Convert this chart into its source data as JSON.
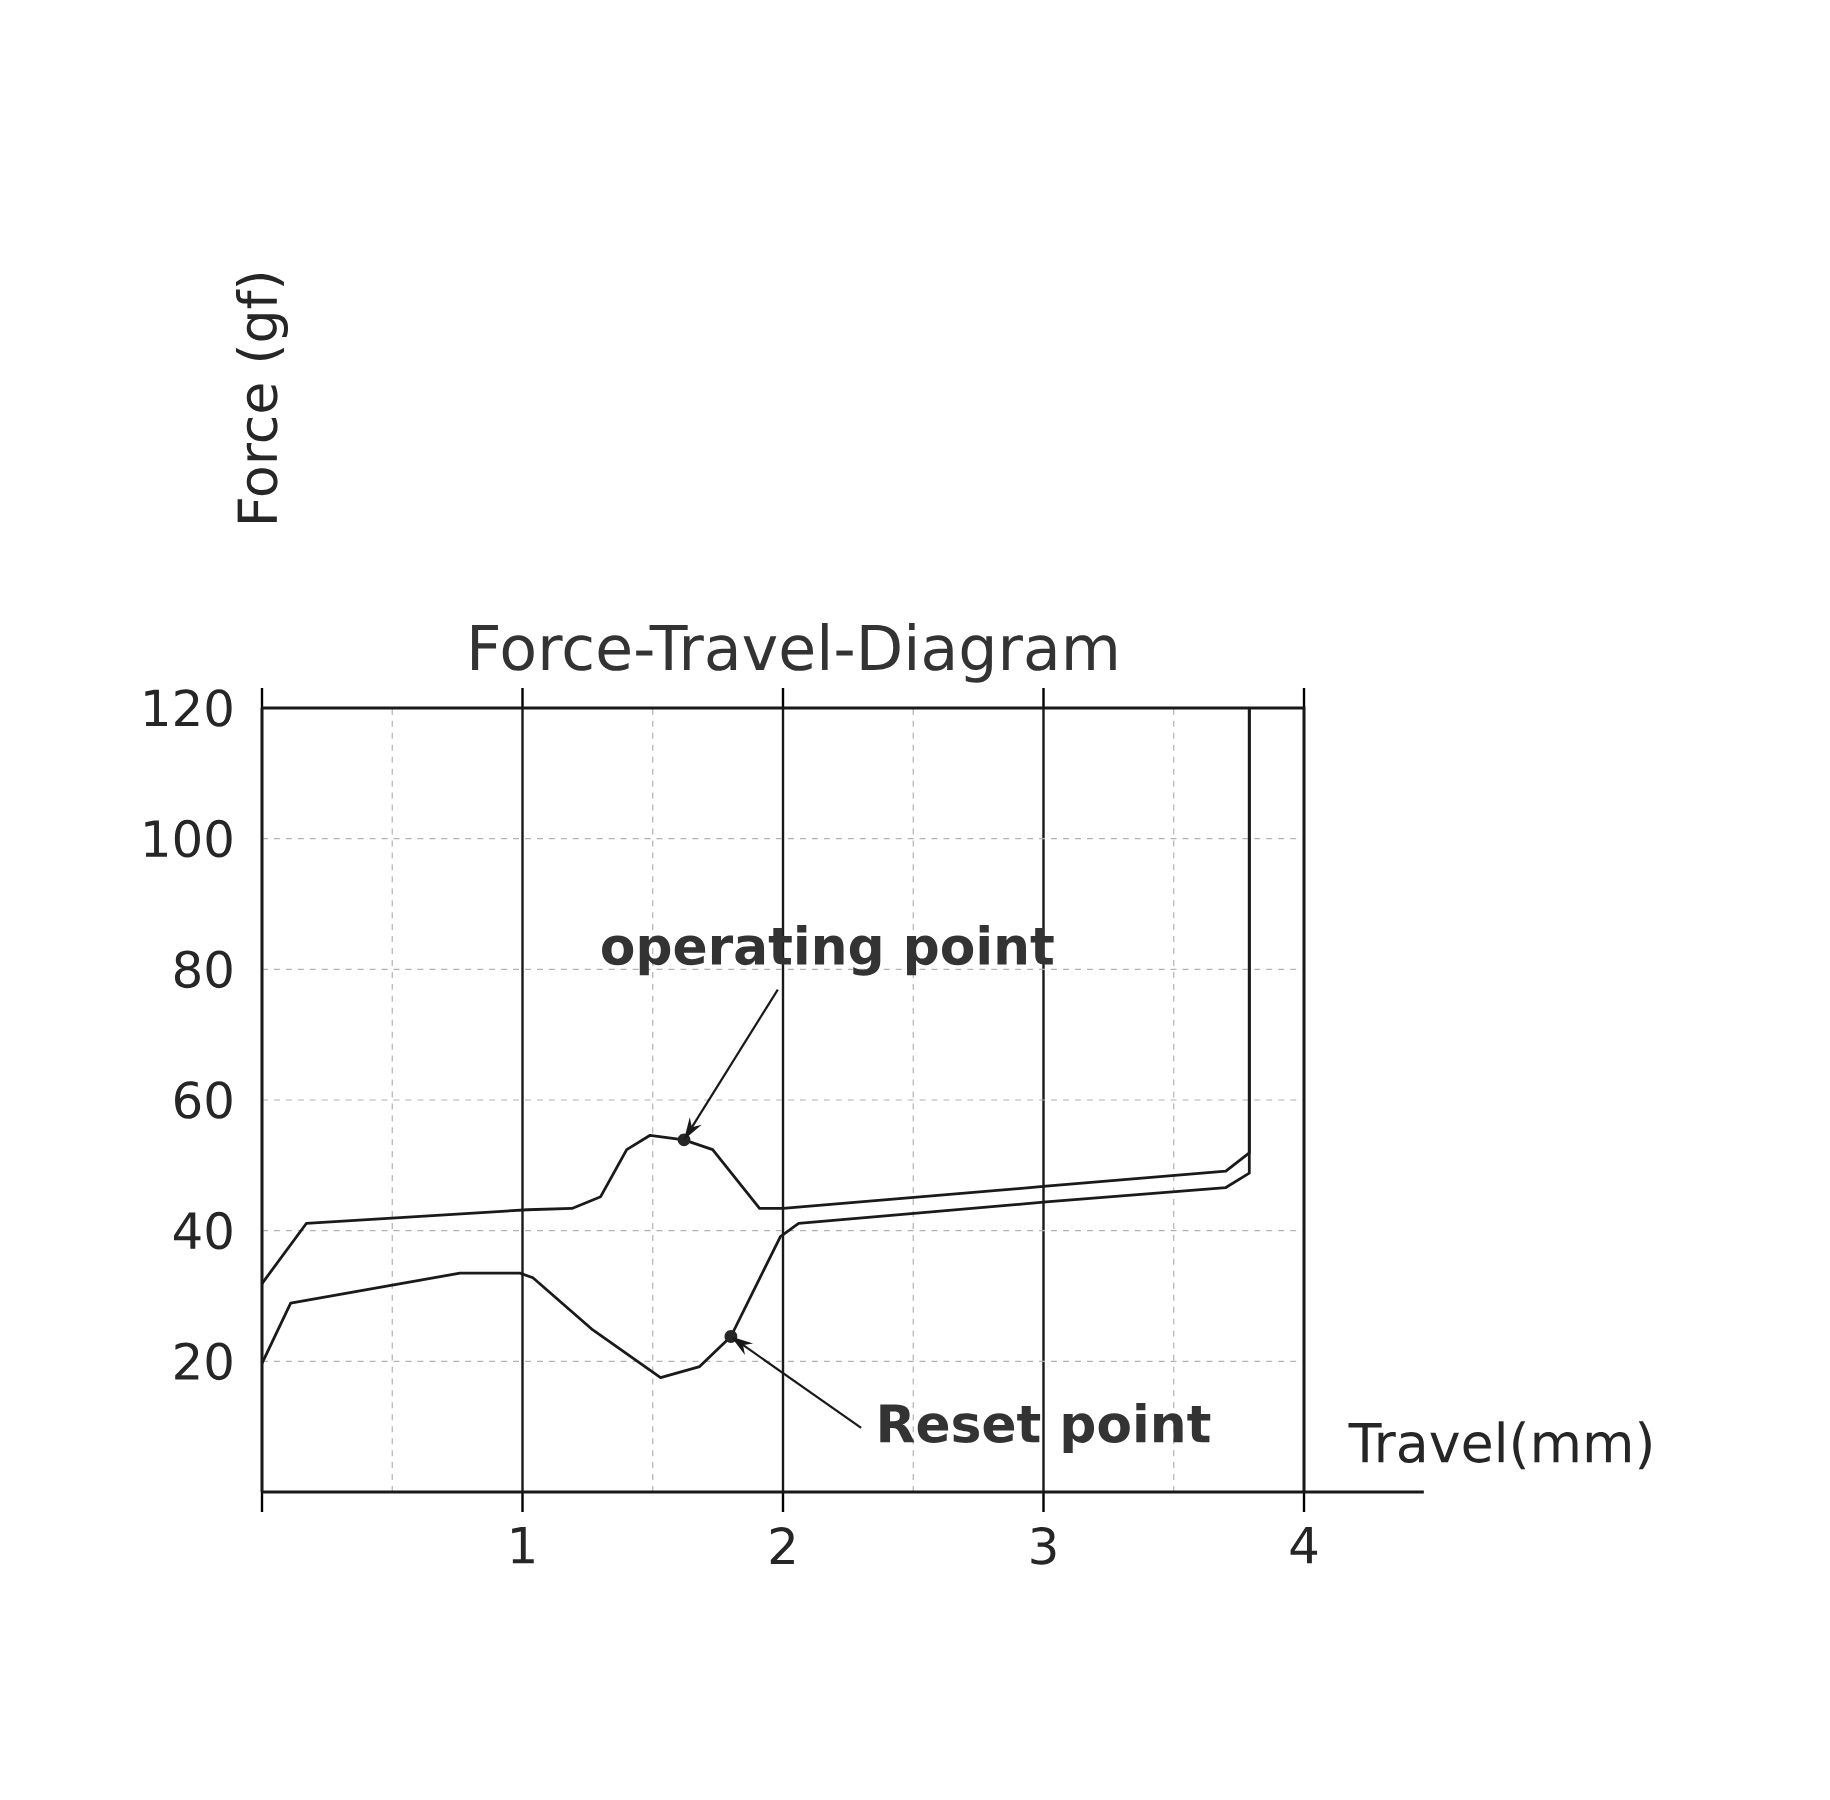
{
  "chart_data": {
    "type": "line",
    "title": "Force-Travel-Diagram",
    "xlabel": "Travel(mm)",
    "ylabel": "Force (gf)",
    "x": [
      0.0,
      0.17,
      1.02,
      1.19,
      1.3,
      1.4,
      1.49,
      1.62,
      1.73,
      1.91,
      2.0,
      3.01,
      3.7,
      3.79,
      3.79
    ],
    "series": [
      {
        "color": "#1a1a1a",
        "values": [
          31.9,
          41.1,
          43.2,
          43.4,
          45.2,
          52.4,
          54.6,
          53.9,
          52.4,
          43.4,
          43.4,
          46.8,
          49.1,
          51.9,
          120
        ]
      },
      {
        "color": "#1a1a1a",
        "x": [
          0.0,
          0.11,
          0.76,
          0.99,
          1.04,
          1.27,
          1.53,
          1.68,
          1.8,
          1.99,
          2.06,
          3.01,
          3.7,
          3.79,
          3.79
        ],
        "values": [
          19.7,
          28.9,
          33.5,
          33.5,
          32.8,
          24.8,
          17.5,
          19.2,
          23.8,
          39.1,
          41.1,
          44.4,
          46.6,
          48.8,
          120
        ]
      }
    ],
    "xlim": [
      0,
      4
    ],
    "ylim": [
      0,
      120
    ],
    "xticks": [
      {
        "value": 0,
        "label": null
      },
      1,
      2,
      3,
      4
    ],
    "yticks": [
      {
        "value": 0,
        "label": null
      },
      20,
      40,
      60,
      80,
      100,
      120
    ],
    "grid": true,
    "annotations": [
      {
        "text": "operating point",
        "x": 1.62,
        "y": 53.9
      },
      {
        "text": "Reset point",
        "x": 1.8,
        "y": 23.8
      }
    ]
  }
}
